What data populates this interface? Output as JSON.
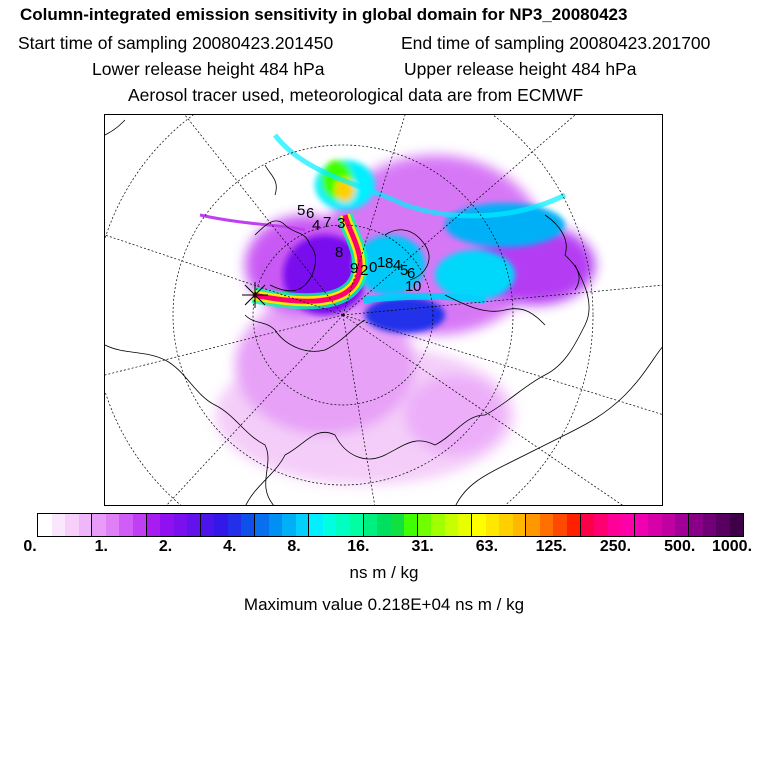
{
  "header": {
    "title": "Column-integrated emission sensitivity in global domain for NP3_20080423",
    "start_time": "Start time of sampling 20080423.201450",
    "end_time": "End time of sampling 20080423.201700",
    "lower_release": "Lower release height  484 hPa",
    "upper_release": "Upper release height  484 hPa",
    "tracer_info": "Aerosol tracer used, meteorological data are from ECMWF"
  },
  "map": {
    "projection": "north polar stereographic",
    "trajectory_labels": [
      "5",
      "6",
      "4",
      "7",
      "3",
      "8",
      "9",
      "2",
      "0",
      "1",
      "8",
      "4",
      "5",
      "6",
      "1",
      "0"
    ],
    "release_marker": "asterisk"
  },
  "colorbar": {
    "colors": [
      "#ffffff",
      "#fbe7fd",
      "#f6cffb",
      "#f0b6fa",
      "#e99bf9",
      "#df80f7",
      "#d05df5",
      "#c03ef3",
      "#a81cf1",
      "#8f10f0",
      "#7a10ee",
      "#6212ec",
      "#4a14eb",
      "#3418ea",
      "#2230ea",
      "#1050ea",
      "#0870ee",
      "#0090f3",
      "#00b0f7",
      "#00d0fb",
      "#00f0ff",
      "#00ffe0",
      "#00ffc0",
      "#00ffa0",
      "#00f080",
      "#00e060",
      "#10e040",
      "#40ff00",
      "#70ff00",
      "#a0ff00",
      "#c8ff00",
      "#e8ff00",
      "#ffff00",
      "#ffe800",
      "#ffd000",
      "#ffb800",
      "#ff9800",
      "#ff7000",
      "#ff4800",
      "#ff2000",
      "#ff0048",
      "#ff0070",
      "#ff0098",
      "#ff00a8",
      "#f000b0",
      "#d800a8",
      "#c000a0",
      "#a00098",
      "#880088",
      "#700078",
      "#580060",
      "#400048"
    ],
    "ticks": [
      "0.",
      "1.",
      "2.",
      "4.",
      "8.",
      "16.",
      "31.",
      "63.",
      "125.",
      "250.",
      "500.",
      "1000."
    ],
    "unit": "ns m / kg"
  },
  "footer": {
    "max_value": "Maximum value  0.218E+04 ns m / kg"
  }
}
